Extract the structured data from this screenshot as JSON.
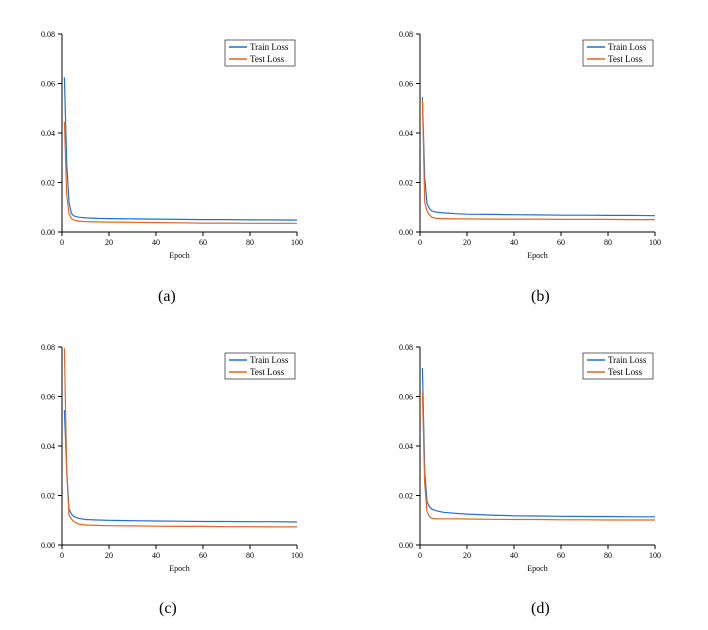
{
  "series_colors": {
    "train": "#1f6fd6",
    "test": "#e8641f"
  },
  "charts": [
    {
      "caption": "(a)",
      "chart_data": {
        "type": "line",
        "xlabel": "Epoch",
        "ylabel": "",
        "xlim": [
          0,
          100
        ],
        "ylim": [
          0,
          0.08
        ],
        "x_ticks": [
          "0",
          "20",
          "40",
          "60",
          "80",
          "100"
        ],
        "y_ticks": [
          "0.00",
          "0.02",
          "0.04",
          "0.06",
          "0.08"
        ],
        "legend": "top-right",
        "series": [
          {
            "name": "Train Loss",
            "x": [
              1,
              2,
              3,
              4,
              5,
              7,
              10,
              15,
              20,
              30,
              40,
              50,
              60,
              70,
              80,
              90,
              100
            ],
            "y": [
              0.0625,
              0.028,
              0.012,
              0.0075,
              0.0065,
              0.006,
              0.0057,
              0.0055,
              0.0054,
              0.0053,
              0.0052,
              0.0051,
              0.005,
              0.005,
              0.0049,
              0.0049,
              0.0048
            ]
          },
          {
            "name": "Test Loss",
            "x": [
              1,
              2,
              3,
              4,
              5,
              7,
              10,
              15,
              20,
              30,
              40,
              50,
              60,
              70,
              80,
              90,
              100
            ],
            "y": [
              0.0445,
              0.015,
              0.0075,
              0.0055,
              0.0048,
              0.0044,
              0.0042,
              0.0041,
              0.004,
              0.0039,
              0.0038,
              0.0037,
              0.0036,
              0.0036,
              0.0035,
              0.0035,
              0.0035
            ]
          }
        ]
      }
    },
    {
      "caption": "(b)",
      "chart_data": {
        "type": "line",
        "xlabel": "Epoch",
        "ylabel": "",
        "xlim": [
          0,
          100
        ],
        "ylim": [
          0,
          0.08
        ],
        "x_ticks": [
          "0",
          "20",
          "40",
          "60",
          "80",
          "100"
        ],
        "y_ticks": [
          "0.00",
          "0.02",
          "0.04",
          "0.06",
          "0.08"
        ],
        "legend": "top-right",
        "series": [
          {
            "name": "Train Loss",
            "x": [
              1,
              2,
              3,
              4,
              5,
              7,
              10,
              15,
              20,
              30,
              40,
              50,
              60,
              70,
              80,
              90,
              100
            ],
            "y": [
              0.0545,
              0.022,
              0.0115,
              0.0095,
              0.0085,
              0.008,
              0.0077,
              0.0074,
              0.0072,
              0.0071,
              0.007,
              0.0069,
              0.0068,
              0.0068,
              0.0067,
              0.0067,
              0.0066
            ]
          },
          {
            "name": "Test Loss",
            "x": [
              1,
              2,
              3,
              4,
              5,
              7,
              10,
              15,
              20,
              30,
              40,
              50,
              60,
              70,
              80,
              90,
              100
            ],
            "y": [
              0.0535,
              0.012,
              0.0085,
              0.007,
              0.006,
              0.0055,
              0.0054,
              0.0053,
              0.0053,
              0.0052,
              0.0052,
              0.0052,
              0.0051,
              0.0051,
              0.0051,
              0.005,
              0.005
            ]
          }
        ]
      }
    },
    {
      "caption": "(c)",
      "chart_data": {
        "type": "line",
        "xlabel": "Epoch",
        "ylabel": "",
        "xlim": [
          0,
          100
        ],
        "ylim": [
          0,
          0.08
        ],
        "x_ticks": [
          "0",
          "20",
          "40",
          "60",
          "80",
          "100"
        ],
        "y_ticks": [
          "0.00",
          "0.02",
          "0.04",
          "0.06",
          "0.08"
        ],
        "legend": "top-right",
        "series": [
          {
            "name": "Train Loss",
            "x": [
              1,
              2,
              3,
              4,
              5,
              7,
              10,
              15,
              20,
              30,
              40,
              50,
              60,
              70,
              80,
              90,
              100
            ],
            "y": [
              0.0545,
              0.03,
              0.0145,
              0.0125,
              0.0115,
              0.0108,
              0.0103,
              0.0101,
              0.01,
              0.0098,
              0.0097,
              0.0096,
              0.0095,
              0.0095,
              0.0094,
              0.0094,
              0.0093
            ]
          },
          {
            "name": "Test Loss",
            "x": [
              1,
              2,
              3,
              4,
              5,
              7,
              10,
              15,
              20,
              30,
              40,
              50,
              60,
              70,
              80,
              90,
              100
            ],
            "y": [
              0.0795,
              0.03,
              0.012,
              0.0105,
              0.0095,
              0.0085,
              0.0081,
              0.0079,
              0.0078,
              0.0077,
              0.0076,
              0.0075,
              0.0075,
              0.0074,
              0.0074,
              0.0073,
              0.0073
            ]
          }
        ]
      }
    },
    {
      "caption": "(d)",
      "chart_data": {
        "type": "line",
        "xlabel": "Epoch",
        "ylabel": "",
        "xlim": [
          0,
          100
        ],
        "ylim": [
          0,
          0.08
        ],
        "x_ticks": [
          "0",
          "20",
          "40",
          "60",
          "80",
          "100"
        ],
        "y_ticks": [
          "0.00",
          "0.02",
          "0.04",
          "0.06",
          "0.08"
        ],
        "legend": "top-right",
        "series": [
          {
            "name": "Train Loss",
            "x": [
              1,
              2,
              3,
              4,
              5,
              7,
              10,
              15,
              20,
              30,
              40,
              50,
              60,
              70,
              80,
              90,
              100
            ],
            "y": [
              0.0715,
              0.03,
              0.0175,
              0.0155,
              0.0145,
              0.0138,
              0.0132,
              0.0128,
              0.0125,
              0.0121,
              0.0118,
              0.0117,
              0.0116,
              0.0115,
              0.0115,
              0.0114,
              0.0114
            ]
          },
          {
            "name": "Test Loss",
            "x": [
              1,
              2,
              3,
              4,
              5,
              7,
              10,
              15,
              20,
              30,
              40,
              50,
              60,
              70,
              80,
              90,
              100
            ],
            "y": [
              0.0615,
              0.025,
              0.0135,
              0.0115,
              0.0108,
              0.0106,
              0.0106,
              0.0106,
              0.0105,
              0.0104,
              0.0103,
              0.0103,
              0.0102,
              0.0102,
              0.0101,
              0.0101,
              0.0101
            ]
          }
        ]
      }
    }
  ]
}
